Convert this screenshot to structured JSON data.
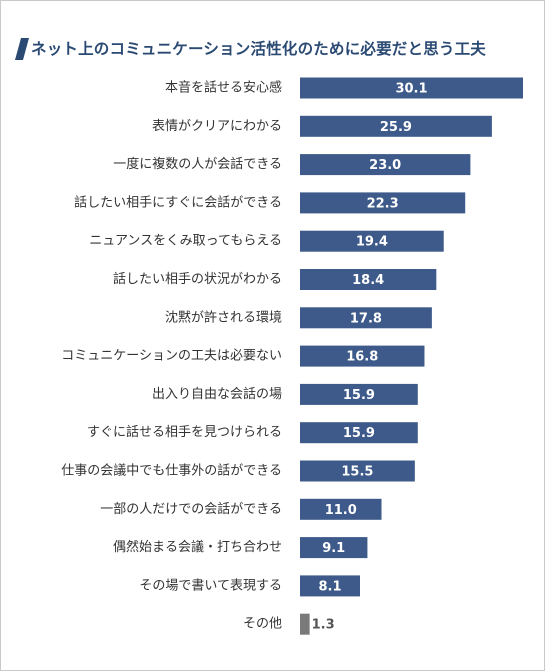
{
  "chart_data": {
    "type": "bar",
    "orientation": "horizontal",
    "title": "ネット上のコミュニケーション活性化のために必要だと思う工夫",
    "categories": [
      "本音を話せる安心感",
      "表情がクリアにわかる",
      "一度に複数の人が会話できる",
      "話したい相手にすぐに会話ができる",
      "ニュアンスをくみ取ってもらえる",
      "話したい相手の状況がわかる",
      "沈黙が許される環境",
      "コミュニケーションの工夫は必要ない",
      "出入り自由な会話の場",
      "すぐに話せる相手を見つけられる",
      "仕事の会議中でも仕事外の話ができる",
      "一部の人だけでの会話ができる",
      "偶然始まる会議・打ち合わせ",
      "その場で書いて表現する",
      "その他"
    ],
    "values": [
      30.1,
      25.9,
      23.0,
      22.3,
      19.4,
      18.4,
      17.8,
      16.8,
      15.9,
      15.9,
      15.5,
      11.0,
      9.1,
      8.1,
      1.3
    ],
    "value_labels": [
      "30.1",
      "25.9",
      "23.0",
      "22.3",
      "19.4",
      "18.4",
      "17.8",
      "16.8",
      "15.9",
      "15.9",
      "15.5",
      "11.0",
      "9.1",
      "8.1",
      "1.3"
    ],
    "xlim": [
      0,
      30.1
    ],
    "grid": false,
    "legend": "none",
    "colors": {
      "bar": "#3d5a8a",
      "bar_other": "#7a7a7a",
      "label_inside": "#ffffff",
      "label_outside": "#555555",
      "title": "#2b4a73",
      "accent": "#2b4a73"
    }
  }
}
